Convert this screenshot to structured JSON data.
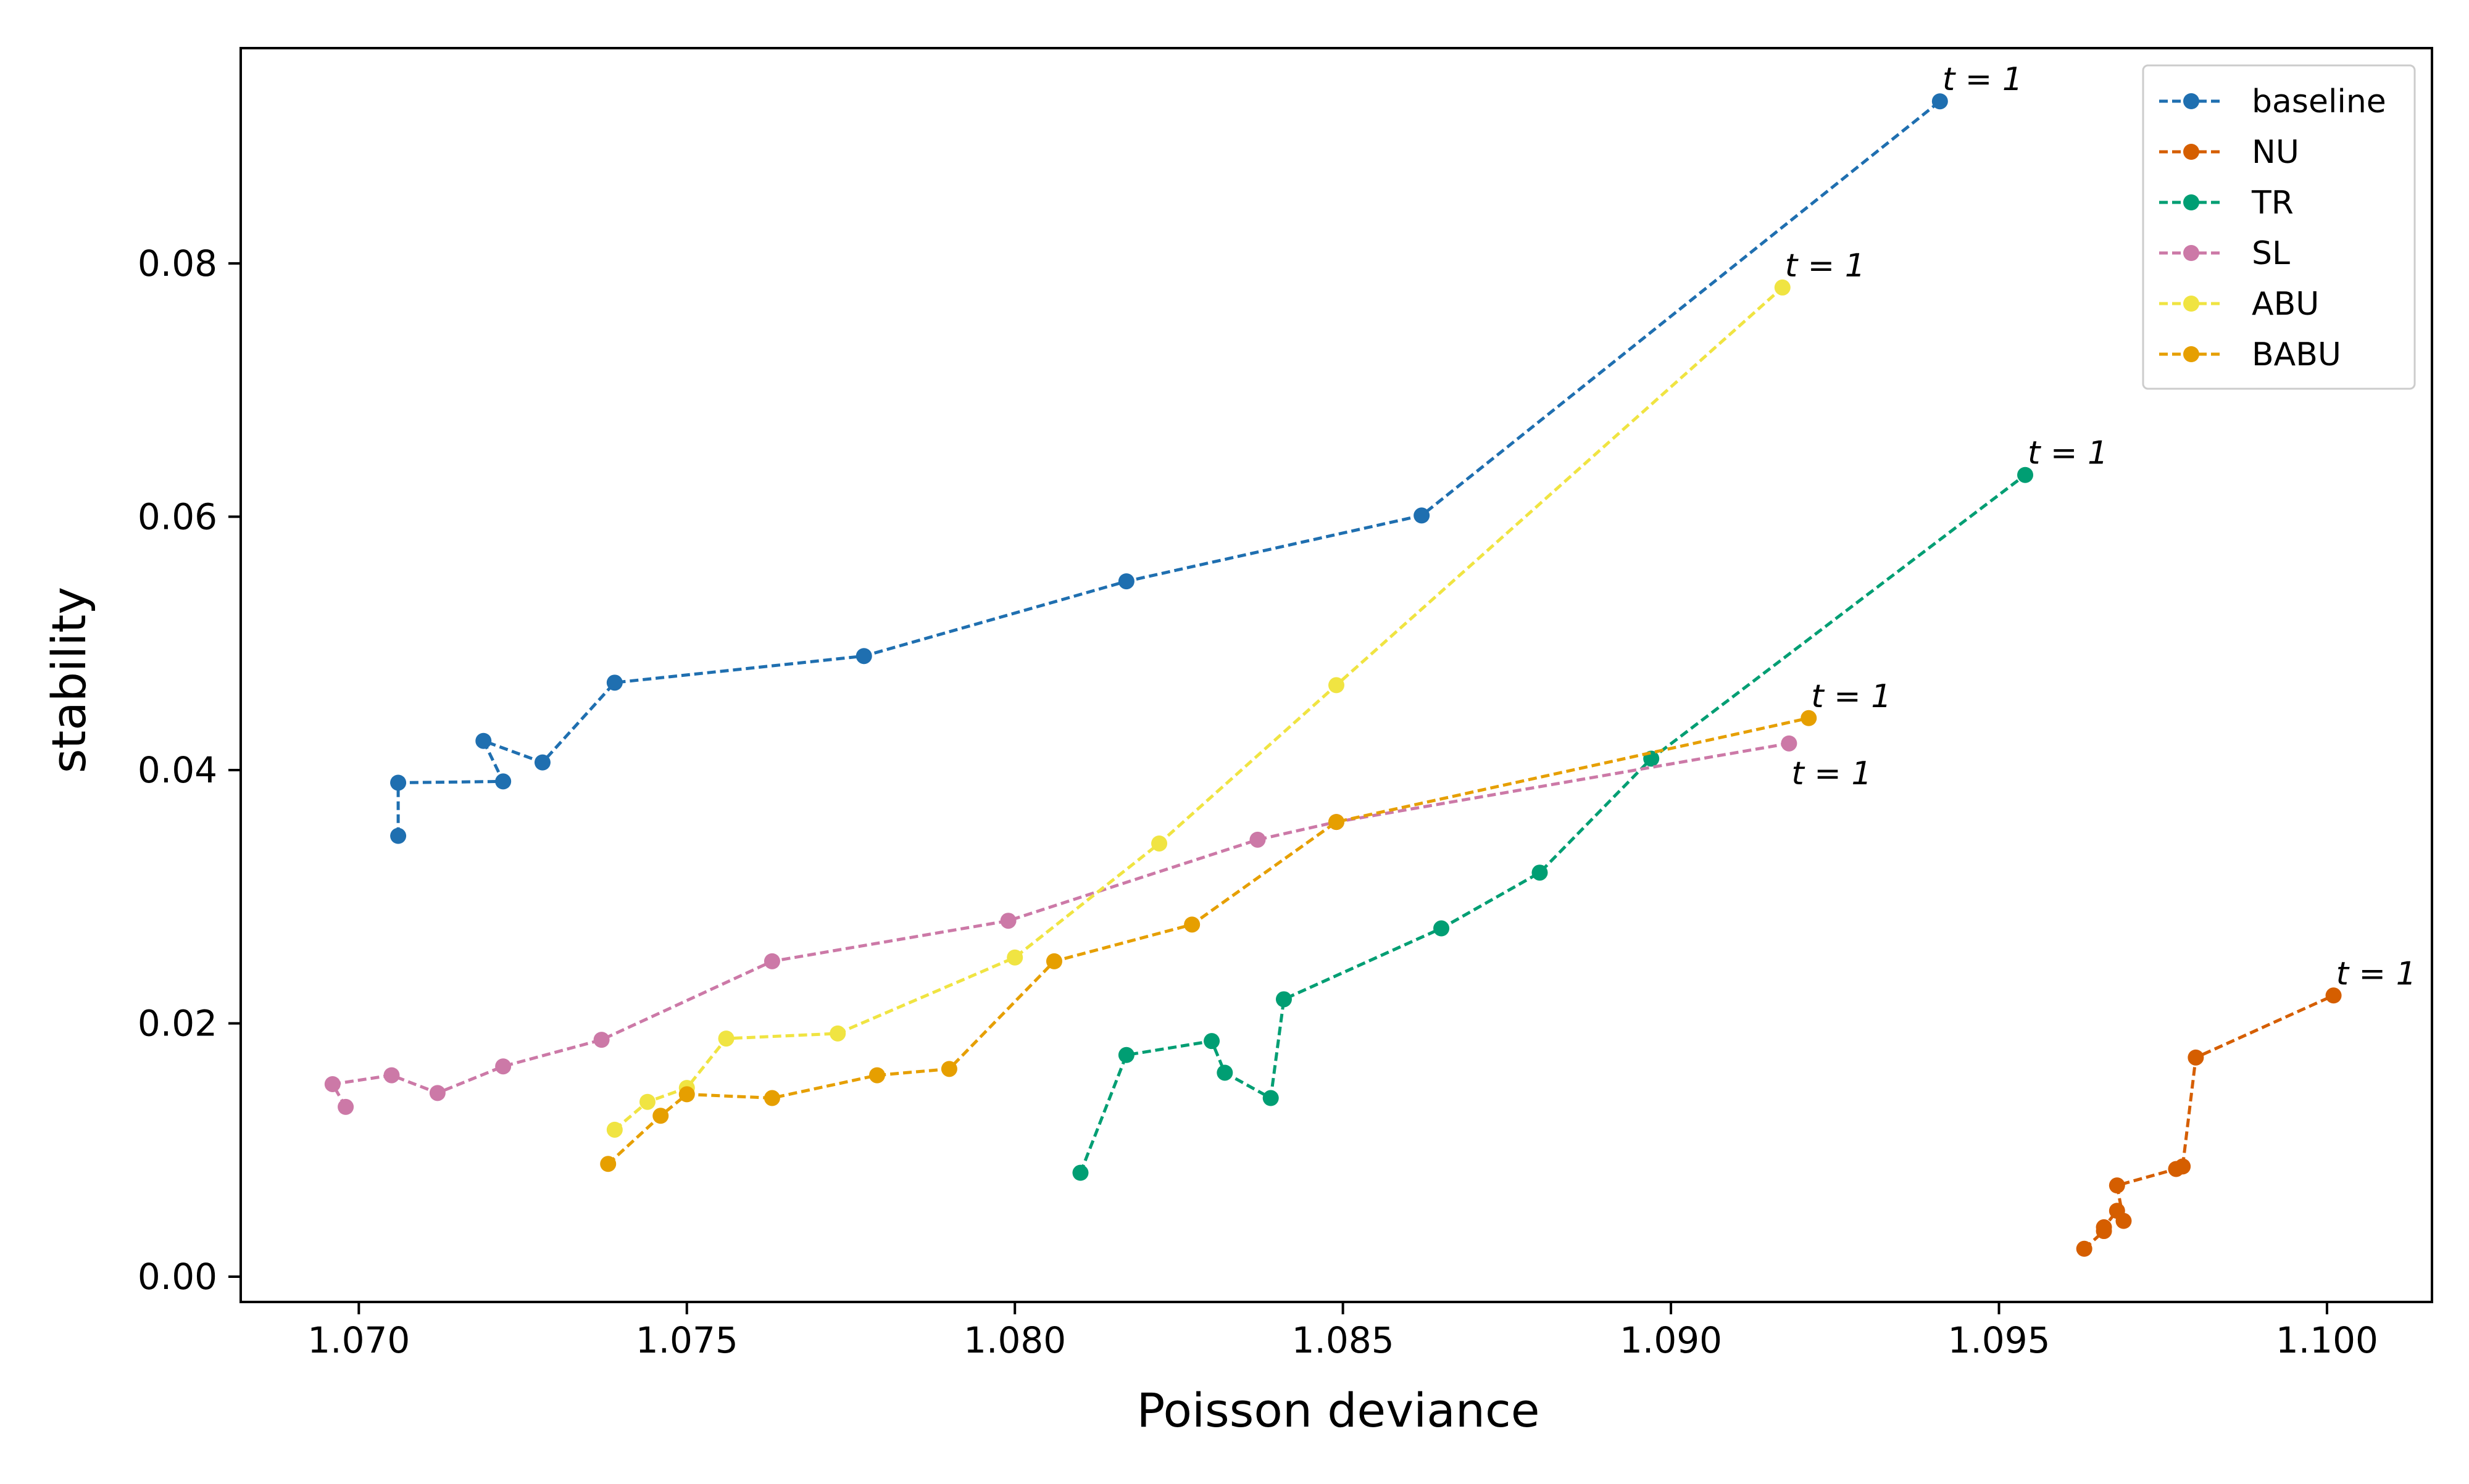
{
  "chart_data": {
    "type": "line",
    "title": "",
    "xlabel": "Poisson deviance",
    "ylabel": "stability",
    "xlim": [
      1.0682,
      1.1016
    ],
    "ylim": [
      -0.002,
      0.097
    ],
    "xticks": [
      1.07,
      1.075,
      1.08,
      1.085,
      1.09,
      1.095,
      1.1
    ],
    "xtick_labels": [
      "1.070",
      "1.075",
      "1.080",
      "1.085",
      "1.090",
      "1.095",
      "1.100"
    ],
    "yticks": [
      0.0,
      0.02,
      0.04,
      0.06,
      0.08
    ],
    "ytick_labels": [
      "0.00",
      "0.02",
      "0.04",
      "0.06",
      "0.08"
    ],
    "grid": false,
    "legend_position": "top-right",
    "line_style": "dashed",
    "series": [
      {
        "name": "baseline",
        "color": "#1f6fb0",
        "points": [
          [
            1.0706,
            0.0348
          ],
          [
            1.0706,
            0.039
          ],
          [
            1.0722,
            0.0391
          ],
          [
            1.0719,
            0.0423
          ],
          [
            1.0728,
            0.0406
          ],
          [
            1.0739,
            0.0469
          ],
          [
            1.0777,
            0.049
          ],
          [
            1.0817,
            0.0549
          ],
          [
            1.0862,
            0.0601
          ],
          [
            1.0941,
            0.0928
          ]
        ],
        "end_label": "t = 1",
        "end_label_pos": "above"
      },
      {
        "name": "NU",
        "color": "#d55e00",
        "points": [
          [
            1.0963,
            0.0022
          ],
          [
            1.0966,
            0.0036
          ],
          [
            1.0966,
            0.0039
          ],
          [
            1.0968,
            0.0052
          ],
          [
            1.0969,
            0.0044
          ],
          [
            1.0968,
            0.0072
          ],
          [
            1.0977,
            0.0085
          ],
          [
            1.0978,
            0.0087
          ],
          [
            1.098,
            0.0173
          ],
          [
            1.1001,
            0.0222
          ]
        ],
        "end_label": "t = 1",
        "end_label_pos": "above"
      },
      {
        "name": "TR",
        "color": "#009e73",
        "points": [
          [
            1.081,
            0.0082
          ],
          [
            1.0817,
            0.0175
          ],
          [
            1.083,
            0.0186
          ],
          [
            1.0832,
            0.0161
          ],
          [
            1.0839,
            0.0141
          ],
          [
            1.0841,
            0.0219
          ],
          [
            1.0865,
            0.0275
          ],
          [
            1.088,
            0.0319
          ],
          [
            1.0897,
            0.0409
          ],
          [
            1.0954,
            0.0633
          ]
        ],
        "end_label": "t = 1",
        "end_label_pos": "above"
      },
      {
        "name": "SL",
        "color": "#cc79a7",
        "points": [
          [
            1.0698,
            0.0134
          ],
          [
            1.0696,
            0.0152
          ],
          [
            1.0705,
            0.0159
          ],
          [
            1.0712,
            0.0145
          ],
          [
            1.0722,
            0.0166
          ],
          [
            1.0737,
            0.0187
          ],
          [
            1.0763,
            0.0249
          ],
          [
            1.0799,
            0.0281
          ],
          [
            1.0837,
            0.0345
          ],
          [
            1.0849,
            0.0359
          ],
          [
            1.0918,
            0.0421
          ]
        ],
        "end_label": "t = 1",
        "end_label_pos": "below"
      },
      {
        "name": "ABU",
        "color": "#f0e442",
        "points": [
          [
            1.0739,
            0.0116
          ],
          [
            1.0744,
            0.0138
          ],
          [
            1.075,
            0.0149
          ],
          [
            1.0756,
            0.0188
          ],
          [
            1.0773,
            0.0192
          ],
          [
            1.08,
            0.0252
          ],
          [
            1.0822,
            0.0342
          ],
          [
            1.0849,
            0.0467
          ],
          [
            1.0917,
            0.0781
          ]
        ],
        "end_label": "t = 1",
        "end_label_pos": "above"
      },
      {
        "name": "BABU",
        "color": "#e69f00",
        "points": [
          [
            1.0738,
            0.0089
          ],
          [
            1.0746,
            0.0127
          ],
          [
            1.075,
            0.0144
          ],
          [
            1.0763,
            0.0141
          ],
          [
            1.0779,
            0.0159
          ],
          [
            1.079,
            0.0164
          ],
          [
            1.0806,
            0.0249
          ],
          [
            1.0827,
            0.0278
          ],
          [
            1.0849,
            0.0359
          ],
          [
            1.0921,
            0.0441
          ]
        ],
        "end_label": "t = 1",
        "end_label_pos": "above"
      }
    ]
  }
}
